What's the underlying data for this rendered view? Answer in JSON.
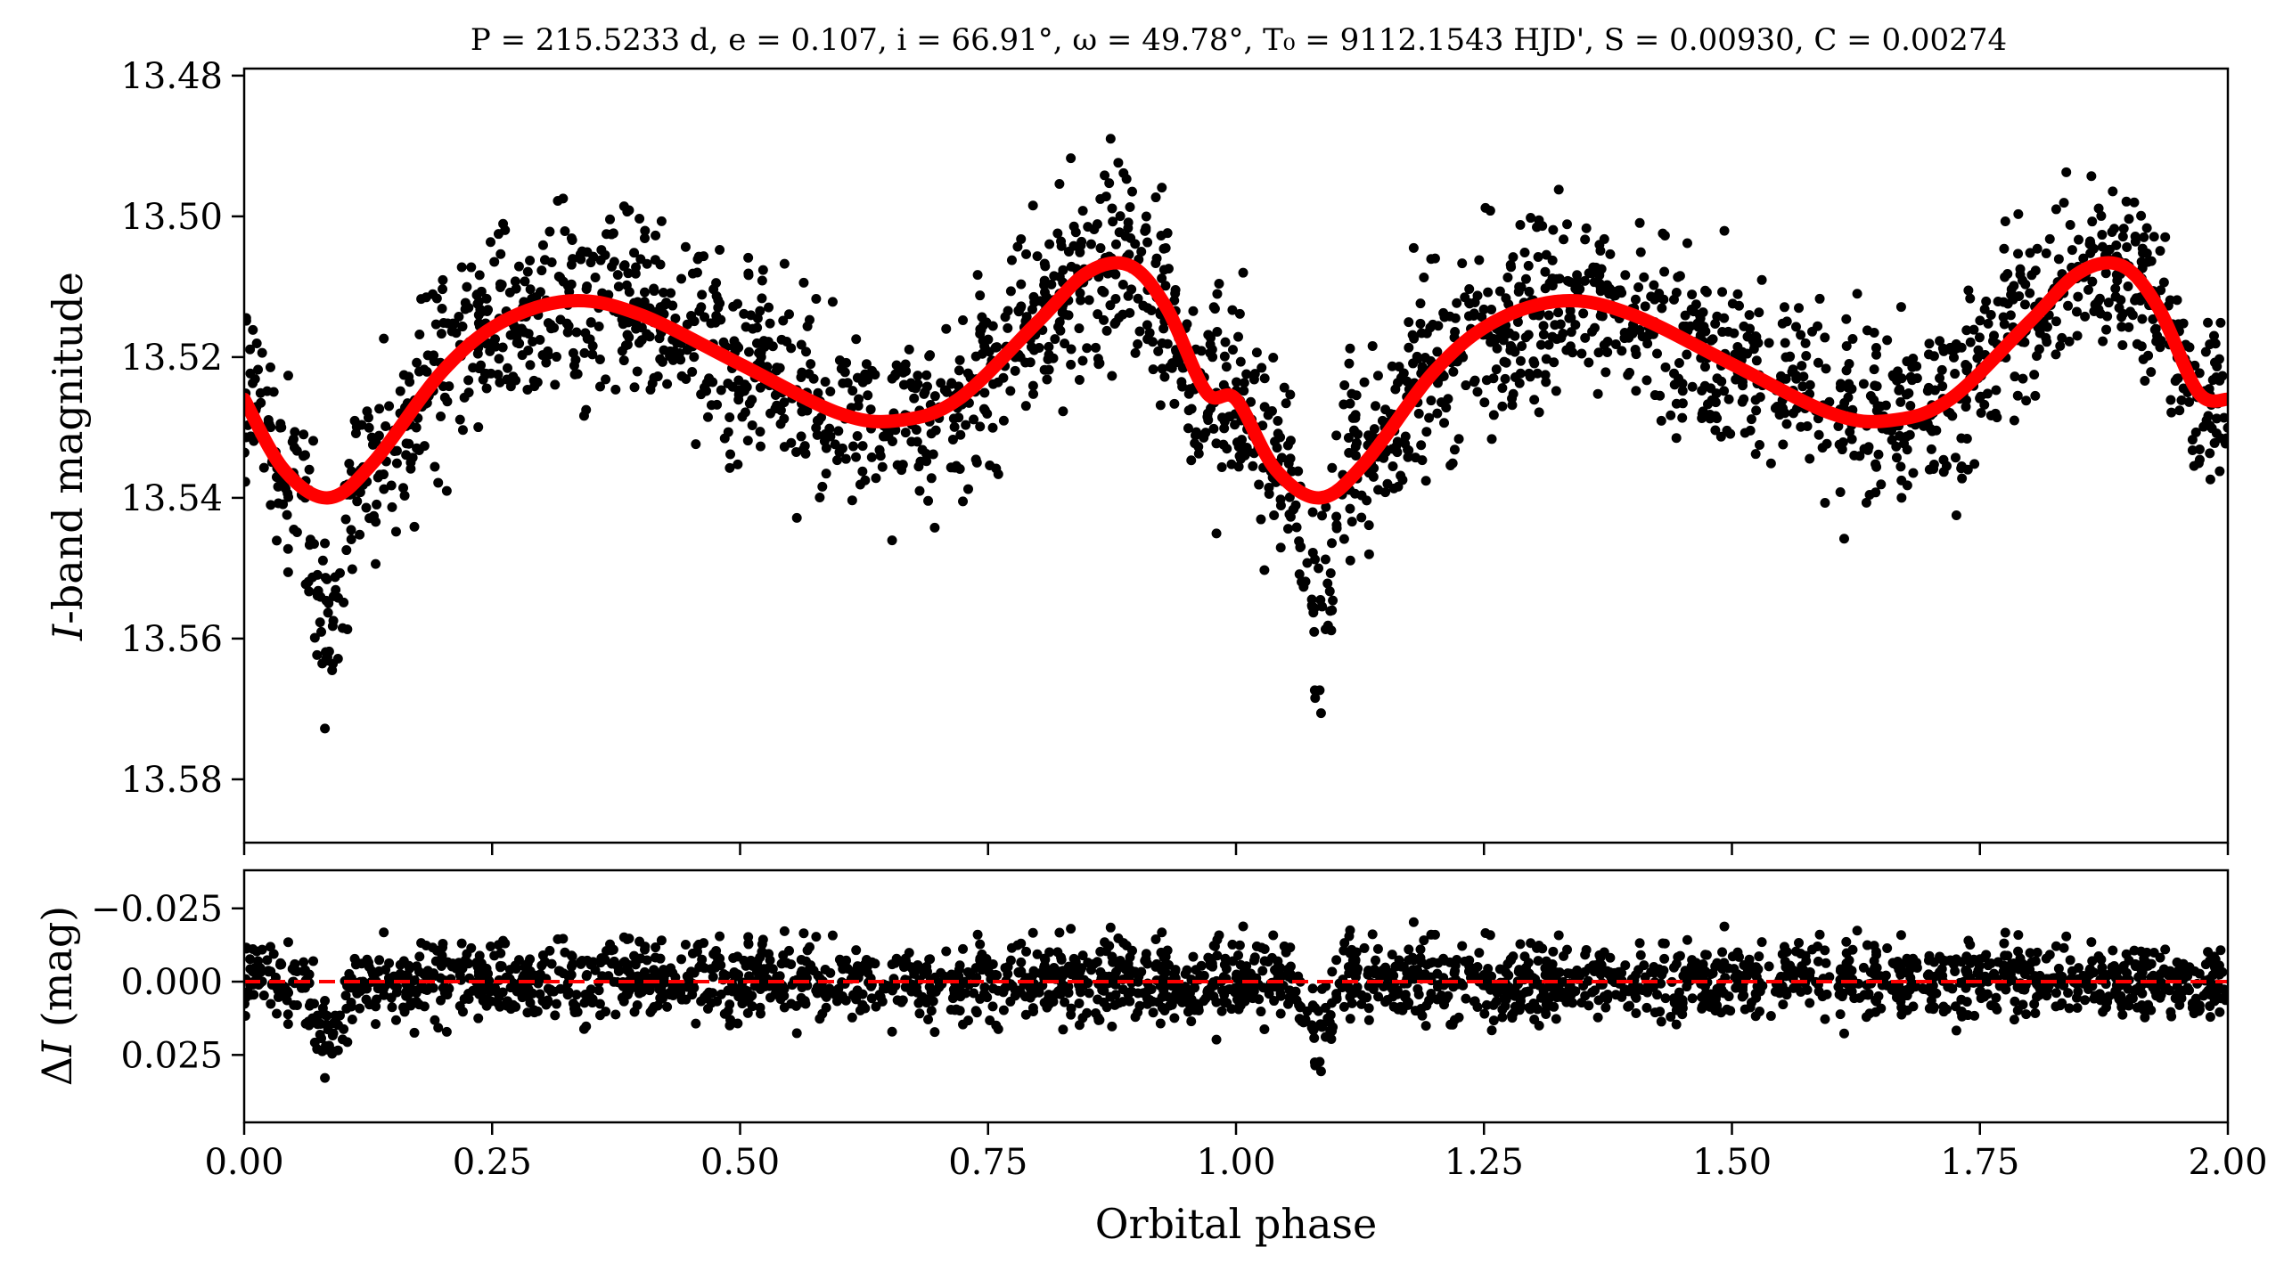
{
  "figure_title": "P = 215.5233 d, e = 0.107, i = 66.91°, ω = 49.78°, T₀ = 9112.1543 HJD', S = 0.00930, C = 0.00274",
  "colors": {
    "points": "#000000",
    "model": "#ff0000",
    "zero_line": "#ff0000",
    "axes": "#000000"
  },
  "chart_data": [
    {
      "type": "scatter",
      "panel": "light-curve",
      "title": "P = 215.5233 d, e = 0.107, i = 66.91°, ω = 49.78°, T₀ = 9112.1543 HJD', S = 0.00930, C = 0.00274",
      "xlabel": "",
      "ylabel": "I-band magnitude",
      "ylabel_parts": {
        "italic": "I",
        "rest": "-band magnitude"
      },
      "xlim": [
        0,
        2
      ],
      "ylim": [
        13.589,
        13.479
      ],
      "y_inverted": true,
      "yticks": [
        "13.48",
        "13.50",
        "13.52",
        "13.54",
        "13.56",
        "13.58"
      ],
      "yticks_values": [
        13.48,
        13.5,
        13.52,
        13.54,
        13.56,
        13.58
      ],
      "xticks_values": [
        0,
        0.25,
        0.5,
        0.75,
        1.0,
        1.25,
        1.5,
        1.75,
        2.0
      ],
      "grid": false,
      "model_curve": {
        "x": [
          0.0,
          0.04,
          0.085,
          0.13,
          0.2,
          0.26,
          0.33,
          0.4,
          0.5,
          0.6,
          0.66,
          0.72,
          0.8,
          0.85,
          0.893,
          0.93,
          0.97,
          1.0,
          1.04,
          1.085,
          1.13,
          1.2,
          1.26,
          1.33,
          1.4,
          1.5,
          1.6,
          1.66,
          1.72,
          1.8,
          1.85,
          1.893,
          1.93,
          1.97,
          2.0
        ],
        "y": [
          13.526,
          13.536,
          13.54,
          13.535,
          13.522,
          13.515,
          13.512,
          13.514,
          13.521,
          13.528,
          13.529,
          13.526,
          13.515,
          13.508,
          13.507,
          13.513,
          13.525,
          13.526,
          13.536,
          13.54,
          13.535,
          13.522,
          13.515,
          13.512,
          13.514,
          13.521,
          13.528,
          13.529,
          13.526,
          13.515,
          13.508,
          13.507,
          13.513,
          13.525,
          13.526
        ]
      },
      "scatter_summary": {
        "approx_points": 7000,
        "noise_sigma_mag": 0.0065,
        "eclipse_depth_extra_mag": 0.03,
        "eclipse_center_phase": [
          0.085,
          1.085
        ]
      }
    },
    {
      "type": "scatter",
      "panel": "residuals",
      "xlabel": "Orbital phase",
      "ylabel": "ΔI (mag)",
      "ylabel_parts": {
        "delta": "Δ",
        "italic": "I",
        "rest": " (mag)"
      },
      "xlim": [
        0,
        2
      ],
      "ylim": [
        0.048,
        -0.038
      ],
      "y_inverted": true,
      "yticks": [
        "−0.025",
        "0.000",
        "0.025"
      ],
      "yticks_values": [
        -0.025,
        0.0,
        0.025
      ],
      "xticks": [
        "0.00",
        "0.25",
        "0.50",
        "0.75",
        "1.00",
        "1.25",
        "1.50",
        "1.75",
        "2.00"
      ],
      "xticks_values": [
        0,
        0.25,
        0.5,
        0.75,
        1.0,
        1.25,
        1.5,
        1.75,
        2.0
      ],
      "zero_line": 0.0,
      "grid": false
    }
  ]
}
